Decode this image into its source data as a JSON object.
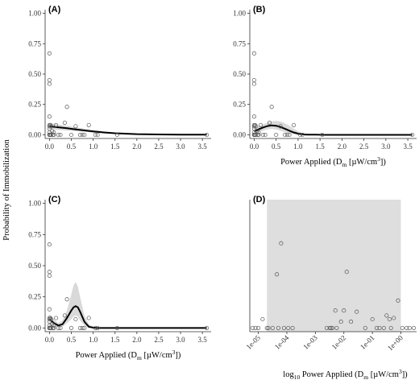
{
  "figure": {
    "ylabel": "Probability of Immobilization"
  },
  "chart_data": [
    {
      "type": "scatter",
      "panel_label": "(A)",
      "xlabel": "",
      "xlim": [
        -0.1,
        3.7
      ],
      "ylim": [
        -0.03,
        1.03
      ],
      "xticks": [
        "0.0",
        "0.5",
        "1.0",
        "1.5",
        "2.0",
        "2.5",
        "3.0",
        "3.5"
      ],
      "yticks": [
        "0.00",
        "0.25",
        "0.50",
        "0.75",
        "1.00"
      ],
      "points_x": [
        0,
        0,
        0,
        0,
        0,
        0,
        0,
        0,
        0,
        0,
        0,
        0,
        0,
        0.02,
        0.02,
        0.04,
        0.04,
        0.06,
        0.08,
        0.1,
        0.1,
        0.15,
        0.2,
        0.25,
        0.35,
        0.4,
        0.5,
        0.6,
        0.7,
        0.75,
        0.8,
        0.9,
        1.05,
        1.1,
        1.55,
        3.6
      ],
      "points_y": [
        0,
        0,
        0,
        0,
        0,
        0.67,
        0.45,
        0.42,
        0.15,
        0.08,
        0.07,
        0.05,
        0.02,
        0,
        0.08,
        0,
        0.07,
        0.03,
        0,
        0,
        0.02,
        0.08,
        0,
        0,
        0.1,
        0.23,
        0,
        0.07,
        0,
        0,
        0,
        0.08,
        0,
        0,
        0,
        0
      ],
      "fit_x": [
        0,
        0.2,
        0.4,
        0.6,
        0.8,
        1.0,
        1.2,
        1.5,
        2.0,
        2.5,
        3.0,
        3.6
      ],
      "fit_y": [
        0.07,
        0.062,
        0.054,
        0.045,
        0.036,
        0.028,
        0.021,
        0.013,
        0.006,
        0.003,
        0.002,
        0.001
      ],
      "band_upper": [
        0.1,
        0.085,
        0.075,
        0.062,
        0.05,
        0.04,
        0.03,
        0.02,
        0.012,
        0.008,
        0.005,
        0.004
      ],
      "band_lower": [
        0.045,
        0.04,
        0.035,
        0.03,
        0.024,
        0.018,
        0.013,
        0.008,
        0.003,
        0.001,
        0,
        0
      ]
    },
    {
      "type": "scatter",
      "panel_label": "(B)",
      "xlabel": "Power Applied (D",
      "xlabel_sub": "m",
      "xlabel_unit": " [µW/cm",
      "xlabel_sup": "3",
      "xlabel_end": "])",
      "xlim": [
        -0.1,
        3.7
      ],
      "ylim": [
        -0.03,
        1.03
      ],
      "xticks": [
        "0.0",
        "0.5",
        "1.0",
        "1.5",
        "2.0",
        "2.5",
        "3.0",
        "3.5"
      ],
      "yticks": [
        "0.00",
        "0.25",
        "0.50",
        "0.75",
        "1.00"
      ],
      "points_x": [
        0,
        0,
        0,
        0,
        0,
        0,
        0,
        0,
        0,
        0,
        0,
        0,
        0,
        0.02,
        0.02,
        0.04,
        0.04,
        0.06,
        0.08,
        0.1,
        0.1,
        0.15,
        0.2,
        0.25,
        0.35,
        0.4,
        0.5,
        0.6,
        0.7,
        0.75,
        0.8,
        0.9,
        1.05,
        1.1,
        1.55,
        3.6
      ],
      "points_y": [
        0,
        0,
        0,
        0,
        0,
        0.67,
        0.45,
        0.42,
        0.15,
        0.08,
        0.07,
        0.05,
        0.02,
        0,
        0.08,
        0,
        0.07,
        0.03,
        0,
        0,
        0.02,
        0.08,
        0,
        0,
        0.1,
        0.23,
        0,
        0.07,
        0,
        0,
        0,
        0.08,
        0,
        0,
        0,
        0
      ],
      "fit_x": [
        0,
        0.1,
        0.2,
        0.3,
        0.4,
        0.5,
        0.6,
        0.7,
        0.8,
        0.9,
        1.0,
        1.1,
        1.2,
        1.4,
        1.6,
        2.0,
        2.5,
        3.0,
        3.6
      ],
      "fit_y": [
        0.03,
        0.045,
        0.06,
        0.072,
        0.078,
        0.075,
        0.065,
        0.05,
        0.034,
        0.02,
        0.01,
        0.005,
        0.002,
        0.001,
        0,
        0,
        0,
        0,
        0
      ],
      "band_upper": [
        0.06,
        0.07,
        0.085,
        0.1,
        0.11,
        0.115,
        0.11,
        0.095,
        0.075,
        0.05,
        0.03,
        0.015,
        0.008,
        0.003,
        0.001,
        0,
        0,
        0,
        0
      ],
      "band_lower": [
        0.01,
        0.02,
        0.035,
        0.045,
        0.05,
        0.045,
        0.035,
        0.022,
        0.012,
        0.005,
        0.002,
        0.001,
        0,
        0,
        0,
        0,
        0,
        0,
        0
      ]
    },
    {
      "type": "scatter",
      "panel_label": "(C)",
      "xlabel": "Power Applied (D",
      "xlabel_sub": "m",
      "xlabel_unit": " [µW/cm",
      "xlabel_sup": "3",
      "xlabel_end": "])",
      "xlim": [
        -0.1,
        3.7
      ],
      "ylim": [
        -0.03,
        1.03
      ],
      "xticks": [
        "0.0",
        "0.5",
        "1.0",
        "1.5",
        "2.0",
        "2.5",
        "3.0",
        "3.5"
      ],
      "yticks": [
        "0.00",
        "0.25",
        "0.50",
        "0.75",
        "1.00"
      ],
      "points_x": [
        0,
        0,
        0,
        0,
        0,
        0,
        0,
        0,
        0,
        0,
        0,
        0,
        0,
        0.02,
        0.02,
        0.04,
        0.04,
        0.06,
        0.08,
        0.1,
        0.1,
        0.15,
        0.2,
        0.25,
        0.35,
        0.4,
        0.5,
        0.6,
        0.7,
        0.75,
        0.8,
        0.9,
        1.05,
        1.1,
        1.55,
        3.6
      ],
      "points_y": [
        0,
        0,
        0,
        0,
        0,
        0.67,
        0.45,
        0.42,
        0.15,
        0.08,
        0.07,
        0.05,
        0.02,
        0,
        0.08,
        0,
        0.07,
        0.03,
        0,
        0,
        0.02,
        0.08,
        0,
        0,
        0.1,
        0.23,
        0,
        0.07,
        0,
        0,
        0,
        0.08,
        0,
        0,
        0,
        0
      ],
      "fit_x": [
        0,
        0.1,
        0.2,
        0.3,
        0.4,
        0.5,
        0.55,
        0.6,
        0.65,
        0.7,
        0.8,
        0.9,
        1.0,
        1.1,
        1.3,
        1.6,
        2.0,
        2.5,
        3.0,
        3.6
      ],
      "fit_y": [
        0.07,
        0.04,
        0.02,
        0.03,
        0.08,
        0.14,
        0.165,
        0.175,
        0.165,
        0.13,
        0.05,
        0.01,
        0.002,
        0,
        0,
        0,
        0,
        0,
        0,
        0
      ],
      "band_upper": [
        0.11,
        0.07,
        0.04,
        0.06,
        0.14,
        0.27,
        0.34,
        0.37,
        0.33,
        0.25,
        0.1,
        0.03,
        0.01,
        0.002,
        0,
        0,
        0,
        0,
        0,
        0
      ],
      "band_lower": [
        0.04,
        0.02,
        0.005,
        0.01,
        0.04,
        0.07,
        0.09,
        0.1,
        0.09,
        0.06,
        0.02,
        0.002,
        0,
        0,
        0,
        0,
        0,
        0,
        0,
        0
      ]
    },
    {
      "type": "scatter",
      "panel_label": "(D)",
      "xscale": "log10",
      "xlabel_prefix": "log",
      "xlabel_prefix_sub": "10",
      "xlabel": " Power Applied (D",
      "xlabel_sub": "m",
      "xlabel_unit": " [µW/cm",
      "xlabel_sup": "3",
      "xlabel_end": "])",
      "xlim": [
        -5.3,
        0.55
      ],
      "ylim": [
        -0.03,
        1.03
      ],
      "band_x": [
        -4.7,
        0.0
      ],
      "xticks": [
        "1e-05",
        "1e-04",
        "1e-03",
        "1e-02",
        "1e-01",
        "1e+00"
      ],
      "xtick_values": [
        -5,
        -4,
        -3,
        -2,
        -1,
        0
      ],
      "points_x": [
        -5.2,
        -5.1,
        -5.0,
        -4.85,
        -4.7,
        -4.65,
        -4.5,
        -4.35,
        -4.3,
        -4.2,
        -4.1,
        -3.95,
        -3.8,
        -2.6,
        -2.5,
        -2.45,
        -2.4,
        -2.3,
        -2.25,
        -2.1,
        -2.0,
        -1.9,
        -1.75,
        -1.55,
        -1.25,
        -1.0,
        -0.85,
        -0.75,
        -0.6,
        -0.5,
        -0.4,
        -0.35,
        -0.25,
        -0.1,
        0.05,
        0.2,
        0.3,
        0.45
      ],
      "points_y": [
        0,
        0,
        0,
        0.07,
        0,
        0,
        0,
        0.43,
        0,
        0.68,
        0,
        0,
        0,
        0,
        0,
        0,
        0,
        0.14,
        0,
        0.05,
        0.14,
        0.45,
        0.05,
        0.13,
        0,
        0.07,
        0,
        0,
        0,
        0.1,
        0.07,
        0,
        0.08,
        0.22,
        0,
        0,
        0,
        0
      ]
    }
  ]
}
